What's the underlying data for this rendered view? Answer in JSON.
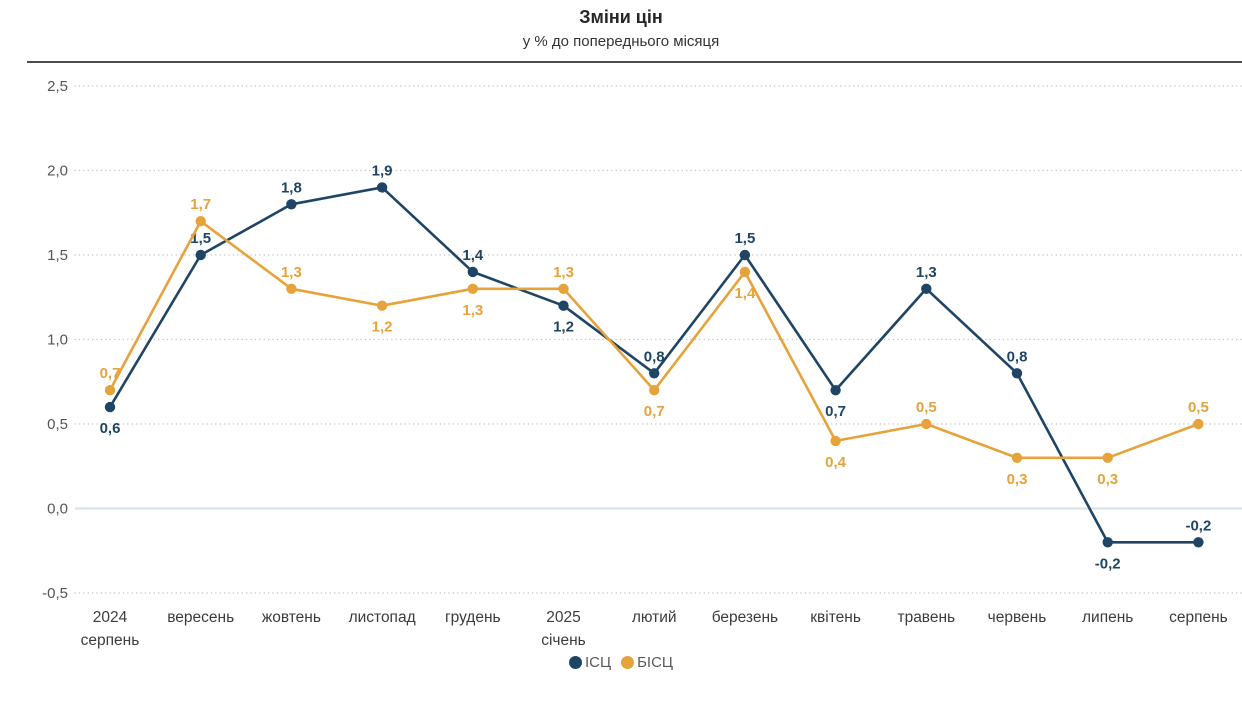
{
  "header": {
    "title": "Зміни цін",
    "subtitle": "у % до попереднього місяця"
  },
  "colors": {
    "icp_navy": "#1e4565",
    "bicp_orange": "#e6a33c",
    "grid": "#c7c7c7",
    "zero_line": "#dce6ef",
    "axis_text": "#555555",
    "x_axis_text": "#3c3c3c",
    "top_rule": "#4d4d4d"
  },
  "chart_data": {
    "type": "line",
    "title": "Зміни цін",
    "subtitle": "у % до попереднього місяця",
    "categories": [
      "2024\nсерпень",
      "вересень",
      "жовтень",
      "листопад",
      "грудень",
      "2025\nсічень",
      "лютий",
      "березень",
      "квітень",
      "травень",
      "червень",
      "липень",
      "серпень"
    ],
    "series": [
      {
        "name": "ІСЦ",
        "color": "#1e4565",
        "values": [
          0.6,
          1.5,
          1.8,
          1.9,
          1.4,
          1.2,
          0.8,
          1.5,
          0.7,
          1.3,
          0.8,
          -0.2,
          -0.2
        ],
        "labels": [
          "0,6",
          "1,5",
          "1,8",
          "1,9",
          "1,4",
          "1,2",
          "0,8",
          "1,5",
          "0,7",
          "1,3",
          "0,8",
          "-0,2",
          "-0,2"
        ],
        "label_pos": [
          "below",
          "above",
          "above",
          "above",
          "above",
          "below",
          "above",
          "above",
          "below",
          "above",
          "above",
          "below",
          "above"
        ]
      },
      {
        "name": "БІСЦ",
        "color": "#e6a33c",
        "values": [
          0.7,
          1.7,
          1.3,
          1.2,
          1.3,
          1.3,
          0.7,
          1.4,
          0.4,
          0.5,
          0.3,
          0.3,
          0.5
        ],
        "labels": [
          "0,7",
          "1,7",
          "1,3",
          "1,2",
          "1,3",
          "1,3",
          "0,7",
          "1,4",
          "0,4",
          "0,5",
          "0,3",
          "0,3",
          "0,5"
        ],
        "label_pos": [
          "above",
          "above",
          "above",
          "below",
          "below",
          "above",
          "below",
          "below",
          "below",
          "above",
          "below",
          "below",
          "above"
        ]
      }
    ],
    "ylim": [
      -0.5,
      2.5
    ],
    "yticks": {
      "values": [
        2.5,
        2.0,
        1.5,
        1.0,
        0.5,
        0.0,
        -0.5
      ],
      "labels": [
        "2,5",
        "2,0",
        "1,5",
        "1,0",
        "0,5",
        "0,0",
        "-0,5"
      ]
    },
    "grid": "horizontal-dotted",
    "legend_position": "bottom-center"
  }
}
